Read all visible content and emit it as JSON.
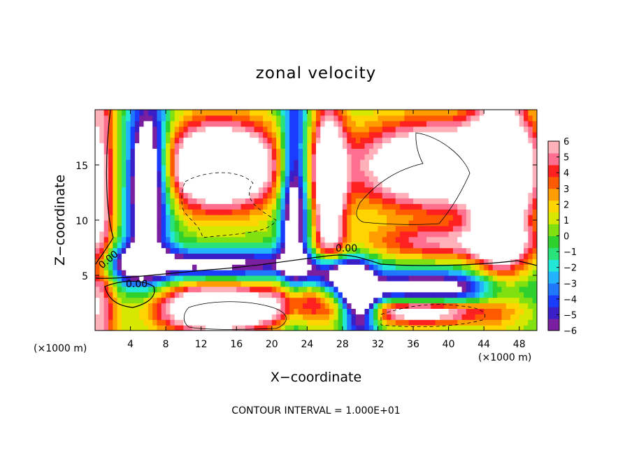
{
  "chart_data": {
    "type": "heatmap",
    "title": "zonal velocity",
    "xlabel": "X−coordinate",
    "ylabel": "Z−coordinate",
    "x_unit_left": "(×1000 m)",
    "x_unit_right": "(×1000 m)",
    "xlim": [
      0,
      50
    ],
    "ylim": [
      0,
      20
    ],
    "xticks": [
      4,
      8,
      12,
      16,
      20,
      24,
      28,
      32,
      36,
      40,
      44,
      48
    ],
    "xtick_labels": [
      "4",
      "8",
      "12",
      "16",
      "20",
      "24",
      "28",
      "32",
      "36",
      "40",
      "44",
      "48"
    ],
    "yticks": [
      5,
      10,
      15
    ],
    "ytick_labels": [
      "5",
      "10",
      "15"
    ],
    "colorbar": {
      "min": -6,
      "max": 6,
      "ticks": [
        6,
        5,
        4,
        3,
        2,
        1,
        0,
        -1,
        -2,
        -3,
        -4,
        -5,
        -6
      ],
      "tick_labels": [
        "6",
        "5",
        "4",
        "3",
        "2",
        "1",
        "0",
        "−1",
        "−2",
        "−3",
        "−4",
        "−5",
        "−6"
      ],
      "colors": [
        "#7a1fa0",
        "#3a1ec8",
        "#1a3cff",
        "#1f78ff",
        "#22b4ff",
        "#22e6d6",
        "#29e37a",
        "#2ed12e",
        "#80e010",
        "#d7e800",
        "#ffd400",
        "#ff9c00",
        "#ff5a00",
        "#ff2020",
        "#ff7090",
        "#ffb0b8"
      ]
    },
    "contour_labels": [
      "0.00",
      "0.00",
      "0.00"
    ],
    "contour_interval_text": "CONTOUR INTERVAL = 1.000E+01",
    "out_of_range_color": "#ffffff"
  }
}
